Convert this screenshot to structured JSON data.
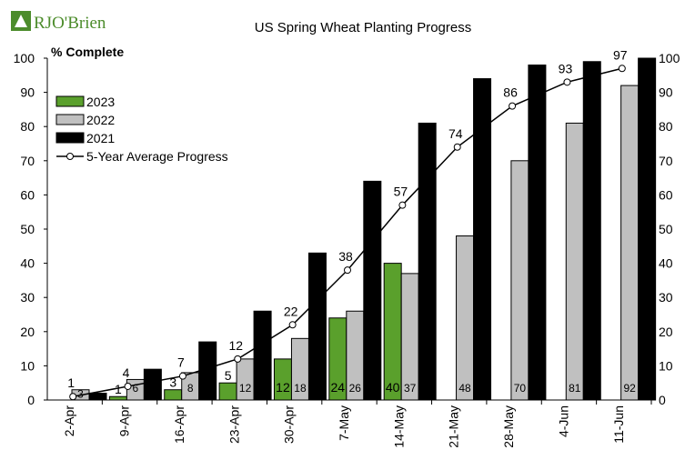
{
  "logo": {
    "text": "RJO'Brien"
  },
  "chart_data": {
    "type": "bar",
    "title": "US Spring Wheat Planting Progress",
    "ylabel": "% Complete",
    "ylim": [
      0,
      100
    ],
    "yticks": [
      0,
      10,
      20,
      30,
      40,
      50,
      60,
      70,
      80,
      90,
      100
    ],
    "categories": [
      "2-Apr",
      "9-Apr",
      "16-Apr",
      "23-Apr",
      "30-Apr",
      "7-May",
      "14-May",
      "21-May",
      "28-May",
      "4-Jun",
      "11-Jun"
    ],
    "series": [
      {
        "name": "2023",
        "type": "bar",
        "color": "#5aa02c",
        "values": [
          0,
          1,
          3,
          5,
          12,
          24,
          40,
          null,
          null,
          null,
          null
        ],
        "labels": [
          "",
          "1",
          "3",
          "5",
          "12",
          "24",
          "40",
          "",
          "",
          "",
          ""
        ]
      },
      {
        "name": "2022",
        "type": "bar",
        "color": "#c0c0c0",
        "values": [
          3,
          6,
          8,
          12,
          18,
          26,
          37,
          48,
          70,
          81,
          92
        ],
        "labels": [
          "3",
          "6",
          "8",
          "12",
          "18",
          "26",
          "37",
          "48",
          "70",
          "81",
          "92"
        ]
      },
      {
        "name": "2021",
        "type": "bar",
        "color": "#000000",
        "values": [
          2,
          9,
          17,
          26,
          43,
          64,
          81,
          94,
          98,
          99,
          100
        ],
        "labels": [
          "",
          "",
          "",
          "",
          "",
          "",
          "",
          "",
          "",
          "",
          ""
        ]
      },
      {
        "name": "5-Year Average Progress",
        "type": "line",
        "color": "#000000",
        "values": [
          1,
          4,
          7,
          12,
          22,
          38,
          57,
          74,
          86,
          93,
          97
        ],
        "labels": [
          "1",
          "4",
          "7",
          "12",
          "22",
          "38",
          "57",
          "74",
          "86",
          "93",
          "97"
        ]
      }
    ],
    "legend": {
      "placement": "top-left"
    },
    "grid": false
  }
}
